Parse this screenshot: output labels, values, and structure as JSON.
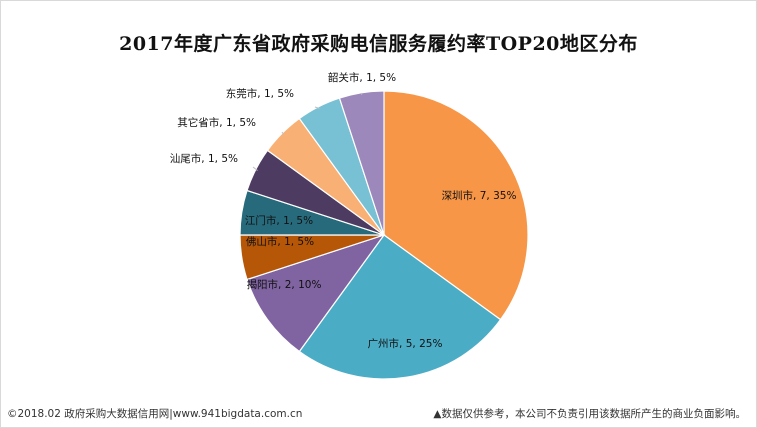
{
  "chart_data": {
    "type": "pie",
    "title": "2017年度广东省政府采购电信服务履约率TOP20地区分布",
    "slices": [
      {
        "label": "深圳市, 7, 35%",
        "name": "深圳市",
        "value": 7,
        "percent": 35,
        "color": "#F79646"
      },
      {
        "label": "广州市, 5, 25%",
        "name": "广州市",
        "value": 5,
        "percent": 25,
        "color": "#4BACC6"
      },
      {
        "label": "揭阳市, 2, 10%",
        "name": "揭阳市",
        "value": 2,
        "percent": 10,
        "color": "#8064A2"
      },
      {
        "label": "佛山市, 1, 5%",
        "name": "佛山市",
        "value": 1,
        "percent": 5,
        "color": "#B65708"
      },
      {
        "label": "江门市, 1, 5%",
        "name": "江门市",
        "value": 1,
        "percent": 5,
        "color": "#276A7C"
      },
      {
        "label": "汕尾市, 1, 5%",
        "name": "汕尾市",
        "value": 1,
        "percent": 5,
        "color": "#4D3B62"
      },
      {
        "label": "其它省市, 1, 5%",
        "name": "其它省市",
        "value": 1,
        "percent": 5,
        "color": "#F9B074"
      },
      {
        "label": "东莞市, 1, 5%",
        "name": "东莞市",
        "value": 1,
        "percent": 5,
        "color": "#78C0D4"
      },
      {
        "label": "韶关市, 1, 5%",
        "name": "韶关市",
        "value": 1,
        "percent": 5,
        "color": "#9C88BA"
      }
    ]
  },
  "footer": {
    "left": "©2018.02 政府采购大数据信用网|www.941bigdata.com.cn",
    "right": "▲数据仅供参考，本公司不负责引用该数据所产生的商业负面影响。"
  }
}
